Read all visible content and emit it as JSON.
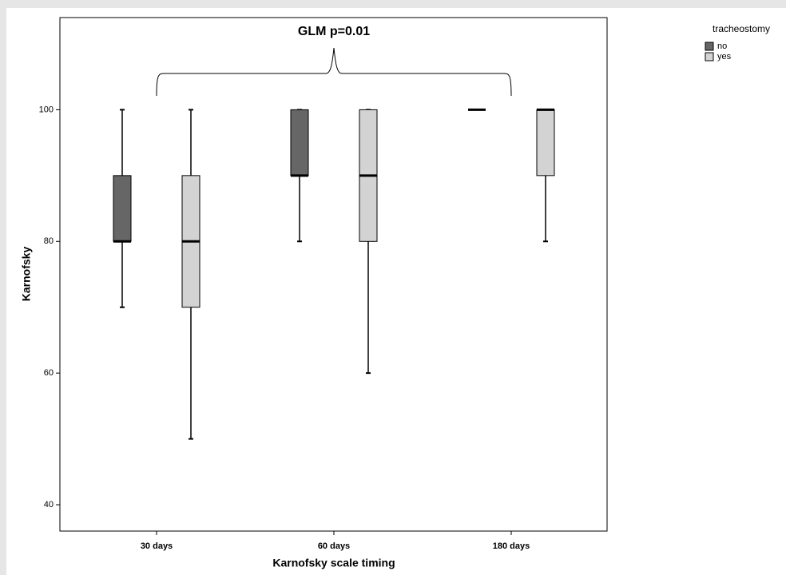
{
  "chart_data": {
    "type": "box",
    "annotation": "GLM p=0.01",
    "x_label": "Karnofsky scale timing",
    "y_label": "Karnofsky",
    "categories": [
      "30 days",
      "60 days",
      "180 days"
    ],
    "legend_title": "tracheostomy",
    "series": [
      {
        "name": "no",
        "color": "#666666",
        "min": [
          70,
          80,
          100
        ],
        "q1": [
          80,
          90,
          100
        ],
        "median": [
          80,
          90,
          100
        ],
        "q3": [
          90,
          100,
          100
        ],
        "max": [
          100,
          100,
          100
        ]
      },
      {
        "name": "yes",
        "color": "#d3d3d3",
        "min": [
          50,
          60,
          80
        ],
        "q1": [
          70,
          80,
          90
        ],
        "median": [
          80,
          90,
          100
        ],
        "q3": [
          90,
          100,
          100
        ],
        "max": [
          100,
          100,
          100
        ]
      }
    ],
    "ylim": [
      36,
      114
    ],
    "yticks": [
      40,
      60,
      80,
      100
    ]
  }
}
